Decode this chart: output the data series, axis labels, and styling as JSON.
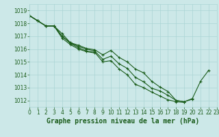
{
  "title": "Graphe pression niveau de la mer (hPa)",
  "bg_color": "#cce8e8",
  "grid_color": "#aad4d4",
  "line_color": "#1a5c1a",
  "xlim": [
    0,
    23
  ],
  "ylim": [
    1011.5,
    1019.5
  ],
  "yticks": [
    1012,
    1013,
    1014,
    1015,
    1016,
    1017,
    1018,
    1019
  ],
  "xticks": [
    0,
    1,
    2,
    3,
    4,
    5,
    6,
    7,
    8,
    9,
    10,
    11,
    12,
    13,
    14,
    15,
    16,
    17,
    18,
    19,
    20,
    21,
    22,
    23
  ],
  "series": [
    {
      "x": [
        0,
        1,
        2,
        3,
        4,
        5,
        6,
        7,
        8,
        9,
        10,
        11,
        12,
        13,
        14,
        15,
        16,
        17,
        18,
        19,
        20,
        21,
        22
      ],
      "y": [
        1018.6,
        1018.2,
        1017.8,
        1017.8,
        1017.2,
        1016.5,
        1016.3,
        1016.05,
        1015.95,
        1015.55,
        1015.9,
        1015.35,
        1015.0,
        1014.45,
        1014.15,
        1013.5,
        1013.05,
        1012.7,
        1012.0,
        1011.9,
        1012.15,
        1013.5,
        1014.35
      ]
    },
    {
      "x": [
        0,
        1,
        2,
        3,
        4,
        5,
        6,
        7,
        8,
        9,
        10,
        11,
        12,
        13,
        14,
        15,
        16,
        17,
        18,
        19,
        20
      ],
      "y": [
        1018.6,
        1018.2,
        1017.8,
        1017.8,
        1017.0,
        1016.5,
        1016.2,
        1016.0,
        1015.85,
        1015.2,
        1015.45,
        1014.85,
        1014.5,
        1013.8,
        1013.45,
        1012.95,
        1012.75,
        1012.4,
        1012.0,
        1011.9,
        1012.1
      ]
    },
    {
      "x": [
        0,
        1,
        2,
        3,
        4,
        5,
        6,
        7,
        8,
        9,
        10,
        11,
        12,
        13,
        14,
        15,
        16,
        17,
        18,
        19
      ],
      "y": [
        1018.6,
        1018.2,
        1017.8,
        1017.8,
        1017.0,
        1016.45,
        1016.1,
        1015.85,
        1015.75,
        1015.0,
        1015.1,
        1014.45,
        1014.0,
        1013.25,
        1013.0,
        1012.65,
        1012.35,
        1012.05,
        1011.9,
        1011.85
      ]
    },
    {
      "x": [
        0,
        1,
        2,
        3,
        4,
        5,
        6,
        7,
        8
      ],
      "y": [
        1018.6,
        1018.2,
        1017.8,
        1017.8,
        1016.85,
        1016.35,
        1016.0,
        1015.8,
        1015.7
      ]
    }
  ],
  "tick_fontsize": 5.5,
  "title_fontsize": 7
}
